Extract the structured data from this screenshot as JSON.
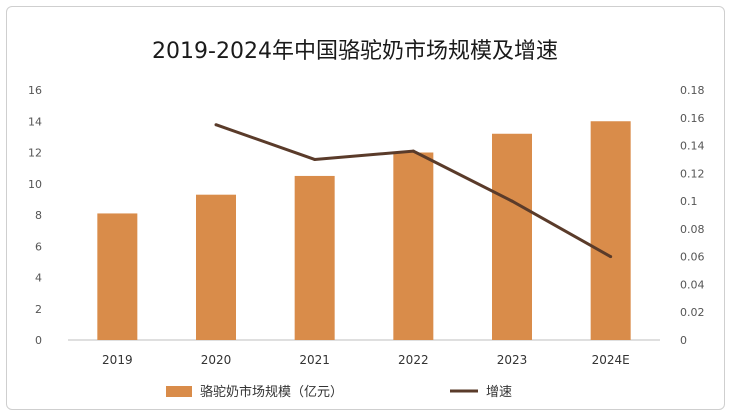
{
  "chart_data": {
    "type": "bar+line",
    "title": "2019-2024年中国骆驼奶市场规模及增速",
    "categories": [
      "2019",
      "2020",
      "2021",
      "2022",
      "2023",
      "2024E"
    ],
    "series": [
      {
        "name": "骆驼奶市场规模（亿元）",
        "type": "bar",
        "axis": "left",
        "values": [
          8.1,
          9.3,
          10.5,
          12.0,
          13.2,
          14.0
        ],
        "color": "#d98c4a"
      },
      {
        "name": "增速",
        "type": "line",
        "axis": "right",
        "values": [
          null,
          0.155,
          0.13,
          0.136,
          0.1,
          0.06
        ],
        "color": "#5a3b2a"
      }
    ],
    "y_left": {
      "min": 0,
      "max": 16,
      "step": 2,
      "ticks": [
        "0",
        "2",
        "4",
        "6",
        "8",
        "10",
        "12",
        "14",
        "16"
      ]
    },
    "y_right": {
      "min": 0,
      "max": 0.18,
      "step": 0.02,
      "ticks": [
        "0",
        "0.02",
        "0.04",
        "0.06",
        "0.08",
        "0.1",
        "0.12",
        "0.14",
        "0.16",
        "0.18"
      ]
    },
    "grid": false,
    "legend_position": "bottom"
  }
}
